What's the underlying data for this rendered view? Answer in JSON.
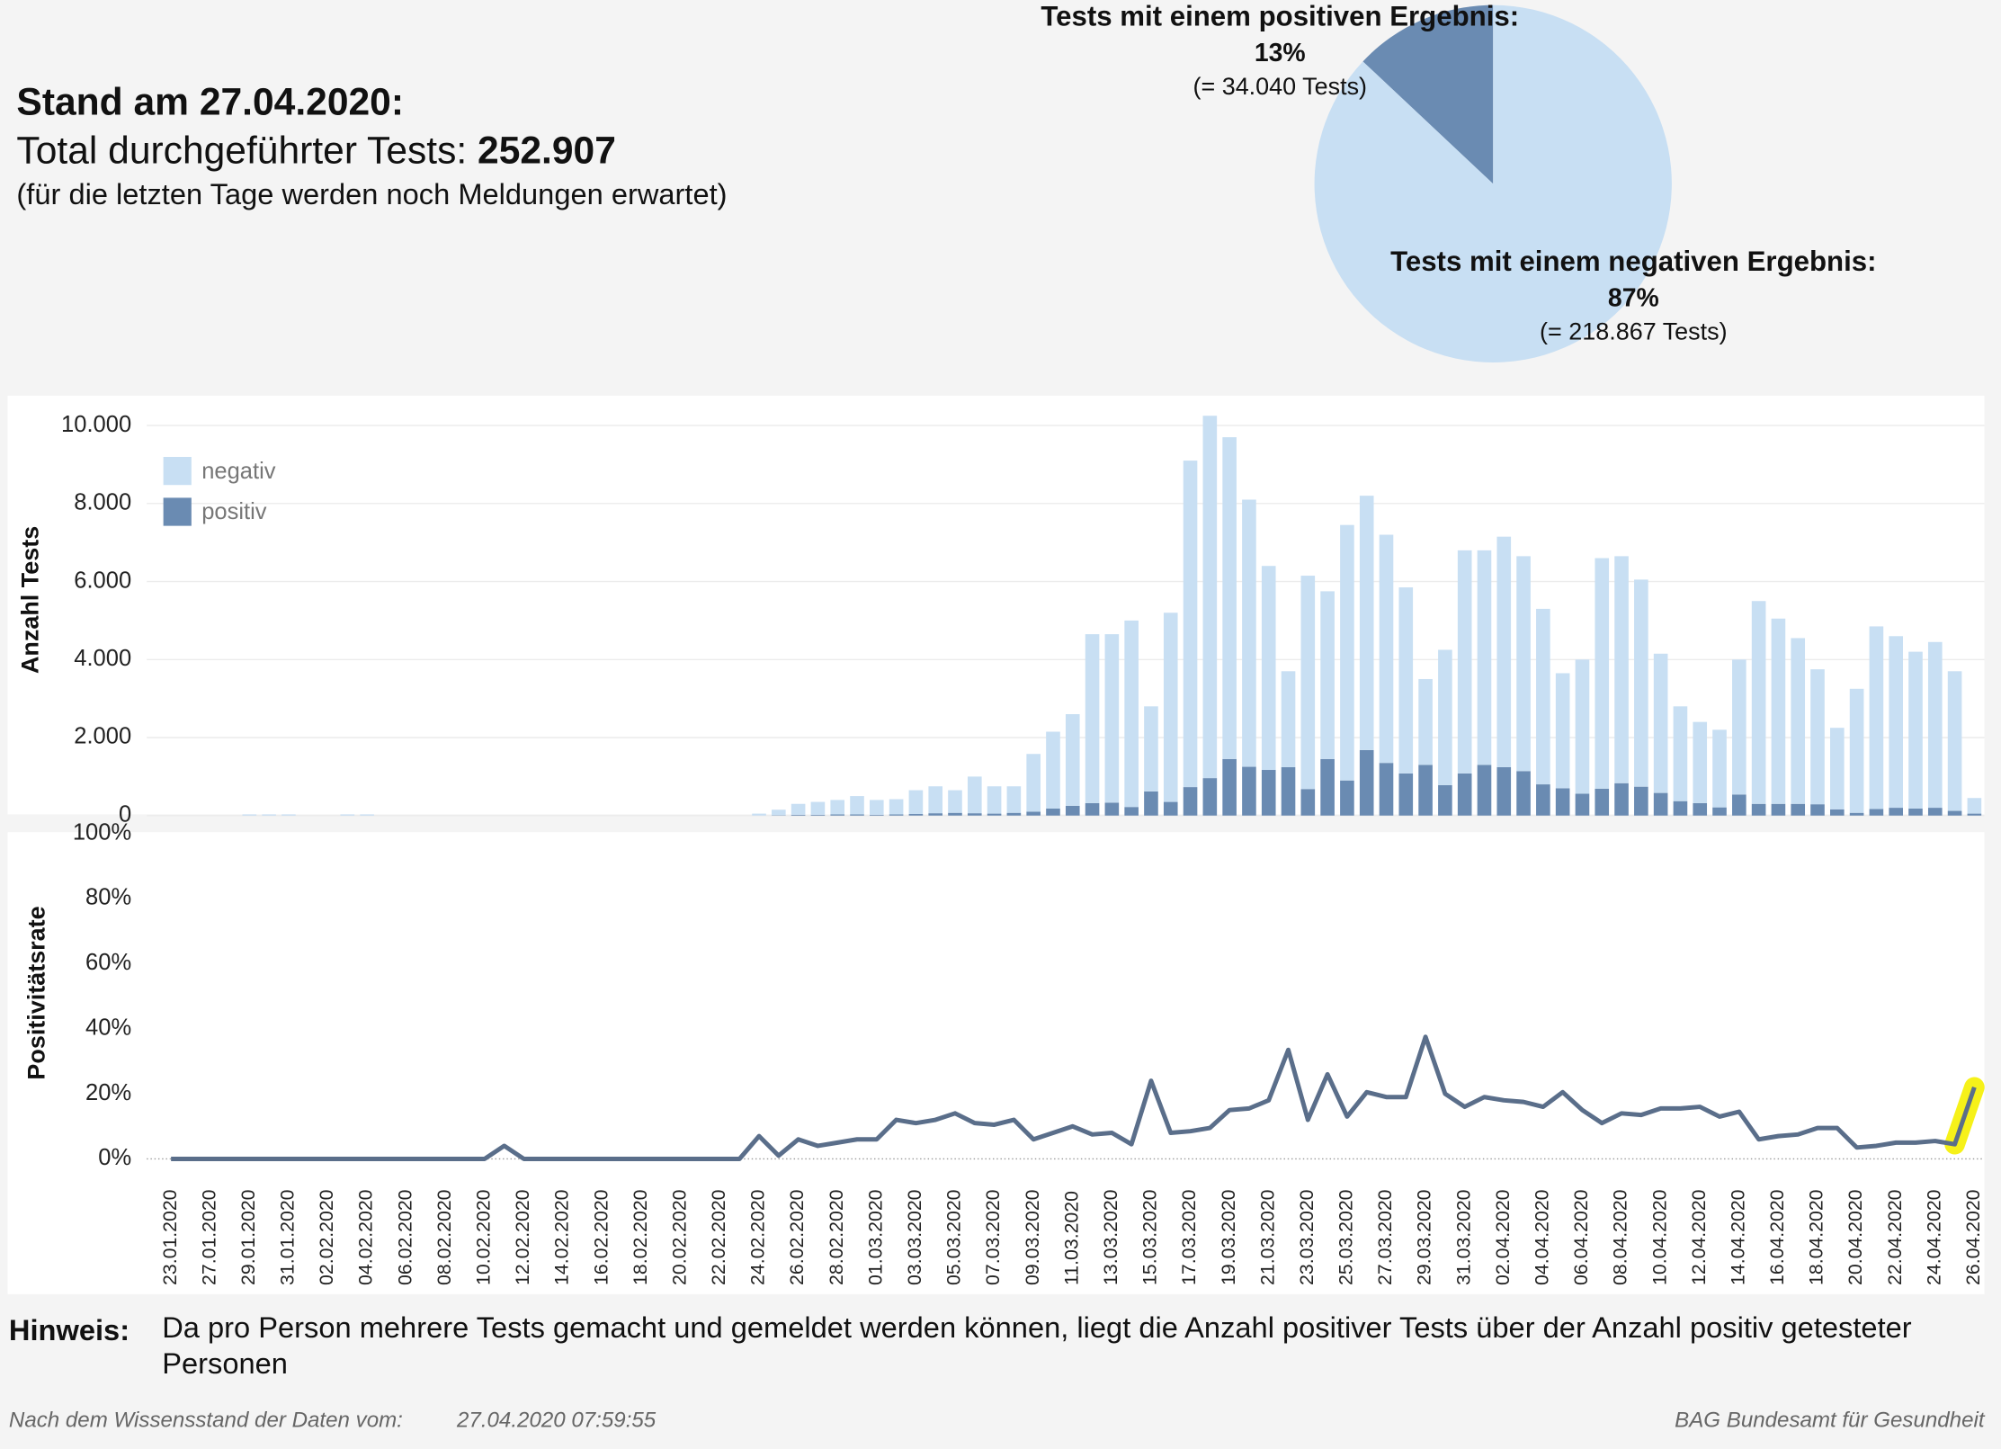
{
  "header": {
    "title": "Stand am 27.04.2020:",
    "total_label": "Total durchgeführter Tests:",
    "total_value": "252.907",
    "note": "(für die letzten Tage werden noch Meldungen erwartet)"
  },
  "chart_data": [
    {
      "type": "pie",
      "categories": [
        "Tests mit einem positiven Ergebnis:",
        "Tests mit einem negativen Ergebnis:"
      ],
      "values": [
        13,
        87
      ],
      "value_labels": [
        "13%",
        "87%"
      ],
      "details": [
        "(= 34.040 Tests)",
        "(= 218.867 Tests)"
      ],
      "colors": [
        "#6a8bb2",
        "#c8dff3"
      ]
    },
    {
      "type": "bar",
      "stacked": true,
      "ylabel": "Anzahl Tests",
      "ylim": [
        0,
        10700
      ],
      "yticks": [
        0,
        {
          "value": 2000,
          "label": "2.000"
        },
        {
          "value": 4000,
          "label": "4.000"
        },
        {
          "value": 6000,
          "label": "6.000"
        },
        {
          "value": 8000,
          "label": "8.000"
        },
        {
          "value": 10000,
          "label": "10.000"
        }
      ],
      "grid": true,
      "legend": "upper left",
      "series": [
        {
          "name": "negativ",
          "color": "#c8dff3",
          "values": [
            0,
            0,
            0,
            0,
            30,
            30,
            30,
            0,
            0,
            30,
            30,
            0,
            0,
            0,
            0,
            0,
            0,
            0,
            0,
            0,
            0,
            0,
            0,
            0,
            0,
            0,
            0,
            0,
            0,
            0,
            50,
            140,
            280,
            330,
            370,
            470,
            380,
            390,
            610,
            690,
            580,
            940,
            700,
            680,
            1480,
            1970,
            2350,
            4330,
            4320,
            4780,
            2180,
            4850,
            8370,
            9290,
            8250,
            6850,
            5230,
            2460,
            5470,
            4300,
            6550,
            6520,
            5850,
            4770,
            2200,
            3470,
            5720,
            5500,
            5910,
            5510,
            4500,
            2950,
            3440,
            5910,
            5820,
            5310,
            3570,
            2430,
            2080,
            1990,
            3460,
            5200,
            4750,
            4250,
            3460,
            2090,
            3180,
            4680,
            4400,
            4020,
            4250,
            3580,
            400
          ]
        },
        {
          "name": "positiv",
          "color": "#6a8bb2",
          "values": [
            0,
            0,
            0,
            0,
            0,
            0,
            0,
            0,
            0,
            0,
            0,
            0,
            0,
            0,
            0,
            0,
            0,
            0,
            0,
            0,
            0,
            0,
            0,
            0,
            0,
            0,
            0,
            0,
            0,
            0,
            0,
            10,
            20,
            20,
            30,
            30,
            20,
            30,
            40,
            60,
            70,
            60,
            50,
            70,
            100,
            180,
            250,
            320,
            330,
            220,
            620,
            350,
            730,
            960,
            1450,
            1250,
            1170,
            1240,
            680,
            1450,
            900,
            1680,
            1350,
            1080,
            1300,
            780,
            1080,
            1300,
            1240,
            1140,
            800,
            700,
            560,
            690,
            830,
            740,
            580,
            370,
            320,
            210,
            540,
            300,
            300,
            300,
            290,
            160,
            70,
            170,
            200,
            180,
            200,
            120,
            50
          ]
        }
      ]
    },
    {
      "type": "line",
      "ylabel": "Positivitätsrate",
      "ylim": [
        0,
        100
      ],
      "yticks": [
        {
          "value": 0,
          "label": "0%"
        },
        {
          "value": 20,
          "label": "20%"
        },
        {
          "value": 40,
          "label": "40%"
        },
        {
          "value": 60,
          "label": "60%"
        },
        {
          "value": 80,
          "label": "80%"
        },
        {
          "value": 100,
          "label": "100%"
        }
      ],
      "grid": false,
      "categories": [
        "23.01.2020",
        null,
        "27.01.2020",
        null,
        "29.01.2020",
        null,
        "31.01.2020",
        null,
        "02.02.2020",
        null,
        "04.02.2020",
        null,
        "06.02.2020",
        null,
        "08.02.2020",
        null,
        "10.02.2020",
        null,
        "12.02.2020",
        null,
        "14.02.2020",
        null,
        "16.02.2020",
        null,
        "18.02.2020",
        null,
        "20.02.2020",
        null,
        "22.02.2020",
        null,
        "24.02.2020",
        null,
        "26.02.2020",
        null,
        "28.02.2020",
        null,
        "01.03.2020",
        null,
        "03.03.2020",
        null,
        "05.03.2020",
        null,
        "07.03.2020",
        null,
        "09.03.2020",
        null,
        "11.03.2020",
        null,
        "13.03.2020",
        null,
        "15.03.2020",
        null,
        "17.03.2020",
        null,
        "19.03.2020",
        null,
        "21.03.2020",
        null,
        "23.03.2020",
        null,
        "25.03.2020",
        null,
        "27.03.2020",
        null,
        "29.03.2020",
        null,
        "31.03.2020",
        null,
        "02.04.2020",
        null,
        "04.04.2020",
        null,
        "06.04.2020",
        null,
        "08.04.2020",
        null,
        "10.04.2020",
        null,
        "12.04.2020",
        null,
        "14.04.2020",
        null,
        "16.04.2020",
        null,
        "18.04.2020",
        null,
        "20.04.2020",
        null,
        "22.04.2020",
        null,
        "24.04.2020",
        null,
        "26.04.2020"
      ],
      "color": "#5a6e8a",
      "highlight_color": "#f5f000",
      "values": [
        0,
        0,
        0,
        0,
        0,
        0,
        0,
        0,
        0,
        0,
        0,
        0,
        0,
        0,
        0,
        0,
        0,
        4,
        0,
        0,
        0,
        0,
        0,
        0,
        0,
        0,
        0,
        0,
        0,
        0,
        7,
        1,
        6,
        4,
        5,
        6,
        6,
        12,
        11,
        12,
        14,
        11,
        10.5,
        12,
        6,
        8,
        10,
        7.5,
        8,
        4.5,
        24,
        8,
        8.5,
        9.5,
        15,
        15.5,
        18,
        33.5,
        12,
        26,
        13,
        20.5,
        19,
        19,
        37.5,
        20,
        16,
        19,
        18,
        17.5,
        16,
        20.5,
        15,
        11,
        14,
        13.5,
        15.5,
        15.5,
        16,
        13,
        14.5,
        6,
        7,
        7.5,
        9.5,
        9.5,
        3.5,
        4,
        5,
        5,
        5.5,
        4.5,
        22
      ]
    }
  ],
  "footer": {
    "hint_label": "Hinweis:",
    "hint": "Da pro Person mehrere Tests gemacht und gemeldet werden können, liegt die Anzahl positiver Tests über der Anzahl positiv getesteter Personen",
    "source_label": "Nach dem Wissensstand der Daten vom:",
    "timestamp": "27.04.2020 07:59:55",
    "publisher": "BAG Bundesamt für Gesundheit"
  }
}
